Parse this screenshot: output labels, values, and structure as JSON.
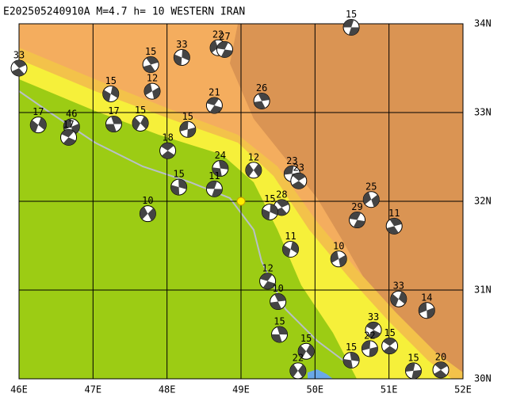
{
  "header": {
    "title": "E202505240910A M=4.7 h= 10 WESTERN IRAN"
  },
  "map": {
    "lonlim": [
      46,
      52
    ],
    "latlim": [
      30,
      34
    ],
    "lon_ticks": [
      {
        "value": 46,
        "label": "46E"
      },
      {
        "value": 47,
        "label": "47E"
      },
      {
        "value": 48,
        "label": "48E"
      },
      {
        "value": 49,
        "label": "49E"
      },
      {
        "value": 50,
        "label": "50E"
      },
      {
        "value": 51,
        "label": "51E"
      },
      {
        "value": 52,
        "label": "52E"
      }
    ],
    "lat_ticks": [
      {
        "value": 30,
        "label": "30N"
      },
      {
        "value": 31,
        "label": "31N"
      },
      {
        "value": 32,
        "label": "32N"
      },
      {
        "value": 33,
        "label": "33N"
      },
      {
        "value": 34,
        "label": "34N"
      }
    ],
    "epicenter": {
      "lon": 49.0,
      "lat": 32.0
    },
    "events": [
      {
        "lon": 50.49,
        "lat": 33.96,
        "depth": 15
      },
      {
        "lon": 46.0,
        "lat": 33.5,
        "depth": 33
      },
      {
        "lon": 48.2,
        "lat": 33.62,
        "depth": 33
      },
      {
        "lon": 48.69,
        "lat": 33.73,
        "depth": 22
      },
      {
        "lon": 48.78,
        "lat": 33.71,
        "depth": 27
      },
      {
        "lon": 47.78,
        "lat": 33.54,
        "depth": 15
      },
      {
        "lon": 47.24,
        "lat": 33.21,
        "depth": 15
      },
      {
        "lon": 47.8,
        "lat": 33.24,
        "depth": 12
      },
      {
        "lon": 48.64,
        "lat": 33.08,
        "depth": 21
      },
      {
        "lon": 49.28,
        "lat": 33.13,
        "depth": 26
      },
      {
        "lon": 46.26,
        "lat": 32.86,
        "depth": 17
      },
      {
        "lon": 46.71,
        "lat": 32.84,
        "depth": 46
      },
      {
        "lon": 46.67,
        "lat": 32.72,
        "depth": 17
      },
      {
        "lon": 47.28,
        "lat": 32.87,
        "depth": 17
      },
      {
        "lon": 47.64,
        "lat": 32.88,
        "depth": 15
      },
      {
        "lon": 48.28,
        "lat": 32.81,
        "depth": 15
      },
      {
        "lon": 48.01,
        "lat": 32.57,
        "depth": 18
      },
      {
        "lon": 48.72,
        "lat": 32.37,
        "depth": 24
      },
      {
        "lon": 49.17,
        "lat": 32.35,
        "depth": 12
      },
      {
        "lon": 49.69,
        "lat": 32.31,
        "depth": 23
      },
      {
        "lon": 49.78,
        "lat": 32.23,
        "depth": 23
      },
      {
        "lon": 48.16,
        "lat": 32.16,
        "depth": 15
      },
      {
        "lon": 47.74,
        "lat": 31.86,
        "depth": 10
      },
      {
        "lon": 48.64,
        "lat": 32.14,
        "depth": 11
      },
      {
        "lon": 49.55,
        "lat": 31.93,
        "depth": 28
      },
      {
        "lon": 49.39,
        "lat": 31.88,
        "depth": 15
      },
      {
        "lon": 50.76,
        "lat": 32.02,
        "depth": 25
      },
      {
        "lon": 50.57,
        "lat": 31.79,
        "depth": 29
      },
      {
        "lon": 51.07,
        "lat": 31.72,
        "depth": 11
      },
      {
        "lon": 49.67,
        "lat": 31.46,
        "depth": 11
      },
      {
        "lon": 50.32,
        "lat": 31.35,
        "depth": 10
      },
      {
        "lon": 49.36,
        "lat": 31.1,
        "depth": 12
      },
      {
        "lon": 49.5,
        "lat": 30.87,
        "depth": 10
      },
      {
        "lon": 51.13,
        "lat": 30.9,
        "depth": 33
      },
      {
        "lon": 51.51,
        "lat": 30.77,
        "depth": 14
      },
      {
        "lon": 50.79,
        "lat": 30.55,
        "depth": 33
      },
      {
        "lon": 49.52,
        "lat": 30.5,
        "depth": 15
      },
      {
        "lon": 49.88,
        "lat": 30.31,
        "depth": 15
      },
      {
        "lon": 50.74,
        "lat": 30.34,
        "depth": 22
      },
      {
        "lon": 51.01,
        "lat": 30.37,
        "depth": 15
      },
      {
        "lon": 50.49,
        "lat": 30.21,
        "depth": 15
      },
      {
        "lon": 49.77,
        "lat": 30.09,
        "depth": 22
      },
      {
        "lon": 51.33,
        "lat": 30.09,
        "depth": 15
      },
      {
        "lon": 51.7,
        "lat": 30.1,
        "depth": 20
      }
    ]
  }
}
